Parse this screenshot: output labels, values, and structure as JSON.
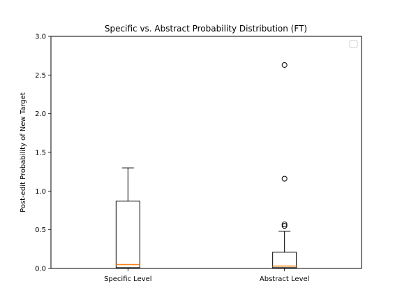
{
  "chart_data": {
    "type": "box",
    "title": "Specific vs. Abstract Probability Distribution (FT)",
    "xlabel": "",
    "ylabel": "Post-edit Probability of New Target",
    "ylim": [
      0,
      3.0
    ],
    "yticks": [
      "0.0",
      "0.5",
      "1.0",
      "1.5",
      "2.0",
      "2.5",
      "3.0"
    ],
    "categories": [
      "Specific Level",
      "Abstract Level"
    ],
    "boxes": [
      {
        "category": "Specific Level",
        "whisker_low": 0.0,
        "q1": 0.01,
        "median": 0.05,
        "q3": 0.87,
        "whisker_high": 1.3,
        "outliers": []
      },
      {
        "category": "Abstract Level",
        "whisker_low": 0.0,
        "q1": 0.01,
        "median": 0.03,
        "q3": 0.21,
        "whisker_high": 0.48,
        "outliers": [
          0.55,
          0.57,
          1.16,
          2.63
        ]
      }
    ],
    "grid": false,
    "legend": {
      "placement": "upper-right",
      "entries": []
    },
    "colors": {
      "box": "#000000",
      "median": "#ff7f0e",
      "outlier": "#000000"
    }
  }
}
